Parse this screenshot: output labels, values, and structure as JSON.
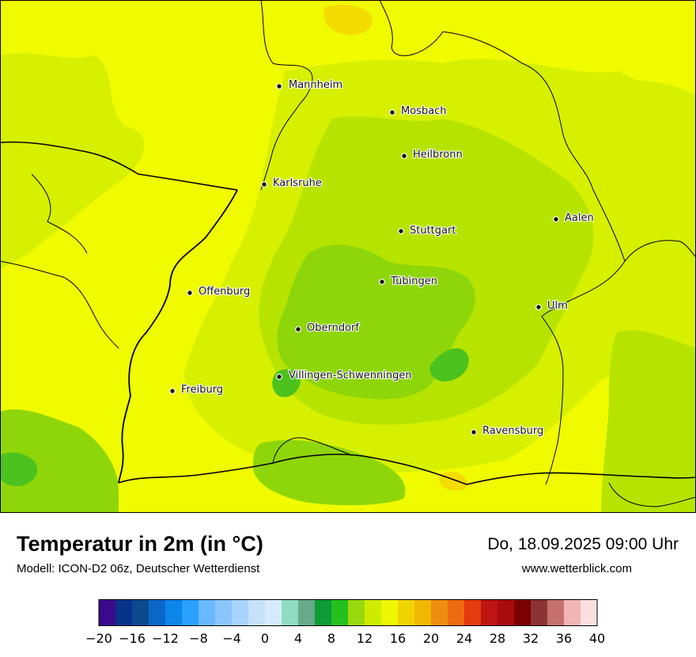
{
  "title": "Temperatur in 2m (in °C)",
  "subtitle": "Modell: ICON-D2 06z, Deutscher Wetterdienst",
  "datetime": "Do, 18.09.2025 09:00 Uhr",
  "website": "www.wetterblick.com",
  "cities": [
    {
      "name": "Mannheim"
    },
    {
      "name": "Mosbach"
    },
    {
      "name": "Heilbronn"
    },
    {
      "name": "Karlsruhe"
    },
    {
      "name": "Aalen"
    },
    {
      "name": "Stuttgart"
    },
    {
      "name": "Tübingen"
    },
    {
      "name": "Offenburg"
    },
    {
      "name": "Ulm"
    },
    {
      "name": "Oberndorf"
    },
    {
      "name": "Villingen-Schwenningen"
    },
    {
      "name": "Freiburg"
    },
    {
      "name": "Ravensburg"
    }
  ],
  "legend": {
    "ticks": [
      "−20",
      "−16",
      "−12",
      "−8",
      "−4",
      "0",
      "4",
      "8",
      "12",
      "16",
      "20",
      "24",
      "28",
      "32",
      "36",
      "40"
    ],
    "min": -20,
    "max": 40,
    "step": 2,
    "colors": [
      "#3a0a8c",
      "#08338a",
      "#0b4a8e",
      "#0a66c8",
      "#0b86ea",
      "#2aa0ff",
      "#6ab8ff",
      "#8ac6fc",
      "#a8d4fb",
      "#c6e2fb",
      "#d8ebfc",
      "#90dcc0",
      "#66aa88",
      "#0e9b38",
      "#24c01e",
      "#9ad80e",
      "#cdec00",
      "#eff800",
      "#f0d400",
      "#f0b800",
      "#ee8e10",
      "#ee6a10",
      "#e43c0c",
      "#be1414",
      "#a80c0c",
      "#7c0000",
      "#8a3434",
      "#c47070",
      "#f2b4b4",
      "#fce0e0"
    ]
  },
  "map_colors": {
    "t16": "#f0fb00",
    "t15": "#d6f000",
    "t14": "#b6e400",
    "t13": "#8ed60a",
    "t12": "#4cc21e",
    "t18": "#f4dc00",
    "border": "#000000"
  }
}
